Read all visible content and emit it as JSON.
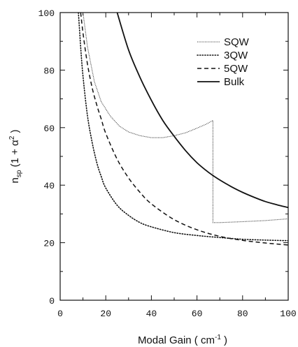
{
  "chart_data": {
    "type": "line",
    "xlabel": "Modal Gain ( cm⁻¹ )",
    "ylabel": "n_sp (1 + α²)",
    "xlim": [
      0,
      100
    ],
    "ylim": [
      0,
      100
    ],
    "xticks": [
      "0",
      "20",
      "40",
      "60",
      "80",
      "100"
    ],
    "yticks": [
      "0",
      "20",
      "40",
      "60",
      "80",
      "100"
    ],
    "grid": false,
    "legend_position": "top-right",
    "series": [
      {
        "name": "SQW",
        "style": "dotted-fine",
        "x": [
          10,
          12,
          15,
          18,
          22,
          26,
          30,
          35,
          40,
          45,
          50,
          55,
          60,
          64,
          67,
          67,
          70,
          80,
          90,
          100
        ],
        "y": [
          100,
          88,
          76,
          69,
          64,
          60.5,
          58.5,
          57.2,
          56.5,
          56.5,
          57.2,
          58.2,
          59.8,
          61.2,
          62.5,
          27,
          27,
          27.3,
          27.7,
          28.3
        ]
      },
      {
        "name": "3QW",
        "style": "dotted",
        "x": [
          8,
          9,
          10,
          12,
          14,
          16,
          18,
          20,
          25,
          30,
          35,
          40,
          50,
          60,
          70,
          80,
          90,
          100
        ],
        "y": [
          100,
          88,
          78,
          64,
          55,
          48,
          43,
          39,
          33,
          29.5,
          27,
          25.5,
          23.5,
          22.5,
          21.8,
          21.2,
          20.9,
          20.7
        ]
      },
      {
        "name": "5QW",
        "style": "dashed",
        "x": [
          9,
          10,
          12,
          14,
          16,
          18,
          20,
          25,
          30,
          35,
          40,
          50,
          60,
          70,
          80,
          90,
          100
        ],
        "y": [
          100,
          93,
          82,
          74,
          68,
          63,
          58,
          49,
          42.5,
          37.5,
          33.5,
          28,
          24.5,
          22.2,
          20.8,
          19.9,
          19.2
        ]
      },
      {
        "name": "Bulk",
        "style": "solid",
        "x": [
          25,
          30,
          35,
          40,
          45,
          50,
          55,
          60,
          65,
          70,
          75,
          80,
          85,
          90,
          95,
          100
        ],
        "y": [
          100,
          87,
          77.5,
          69.5,
          62.5,
          57,
          52,
          47.8,
          44.5,
          41.8,
          39.5,
          37.5,
          35.8,
          34.3,
          33.2,
          32.2
        ]
      }
    ]
  }
}
